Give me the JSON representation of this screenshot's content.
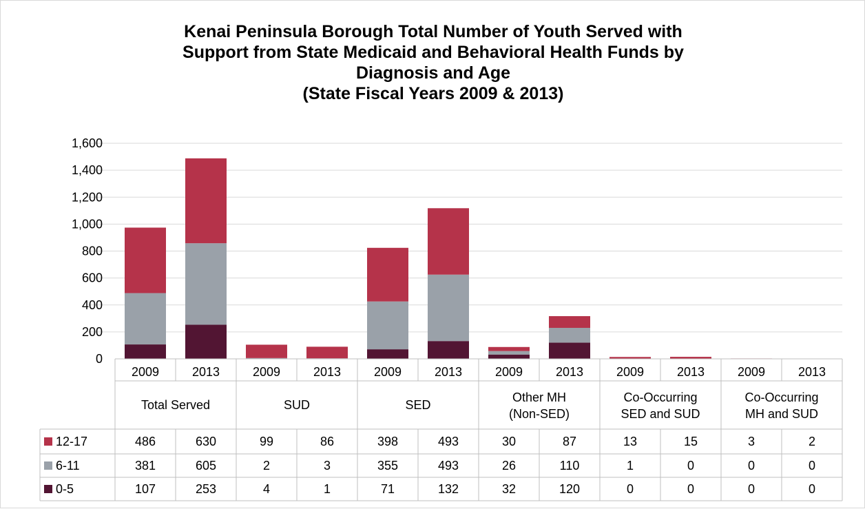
{
  "chart_data": {
    "type": "bar",
    "stacked": true,
    "title_lines": [
      "Kenai Peninsula Borough Total Number of Youth Served with",
      "Support from State Medicaid and Behavioral Health Funds by",
      "Diagnosis and Age",
      "(State Fiscal Years 2009 & 2013)"
    ],
    "groups": [
      {
        "label_lines": [
          "Total Served"
        ]
      },
      {
        "label_lines": [
          "SUD"
        ]
      },
      {
        "label_lines": [
          "SED"
        ]
      },
      {
        "label_lines": [
          "Other MH",
          "(Non-SED)"
        ]
      },
      {
        "label_lines": [
          "Co-Occurring",
          "SED and SUD"
        ]
      },
      {
        "label_lines": [
          "Co-Occurring",
          "MH and SUD"
        ]
      }
    ],
    "years": [
      "2009",
      "2013"
    ],
    "categories": [
      "Total Served 2009",
      "Total Served 2013",
      "SUD 2009",
      "SUD 2013",
      "SED 2009",
      "SED 2013",
      "Other MH (Non-SED) 2009",
      "Other MH (Non-SED) 2013",
      "Co-Occurring SED and SUD 2009",
      "Co-Occurring SED and SUD 2013",
      "Co-Occurring MH and SUD 2009",
      "Co-Occurring MH and SUD 2013"
    ],
    "series": [
      {
        "name": "12-17",
        "color": "#b5334a",
        "values": [
          486,
          630,
          99,
          86,
          398,
          493,
          30,
          87,
          13,
          15,
          3,
          2
        ]
      },
      {
        "name": "6-11",
        "color": "#9aa1a9",
        "values": [
          381,
          605,
          2,
          3,
          355,
          493,
          26,
          110,
          1,
          0,
          0,
          0
        ]
      },
      {
        "name": "0-5",
        "color": "#521533",
        "values": [
          107,
          253,
          4,
          1,
          71,
          132,
          32,
          120,
          0,
          0,
          0,
          0
        ]
      }
    ],
    "stack_order_bottom_to_top": [
      "0-5",
      "6-11",
      "12-17"
    ],
    "ylim": [
      0,
      1600
    ],
    "yticks": [
      0,
      200,
      400,
      600,
      800,
      1000,
      1200,
      1400,
      1600
    ],
    "ytick_labels": [
      "0",
      "200",
      "400",
      "600",
      "800",
      "1,000",
      "1,200",
      "1,400",
      "1,600"
    ],
    "grid": true,
    "legend": "data-table-below"
  }
}
